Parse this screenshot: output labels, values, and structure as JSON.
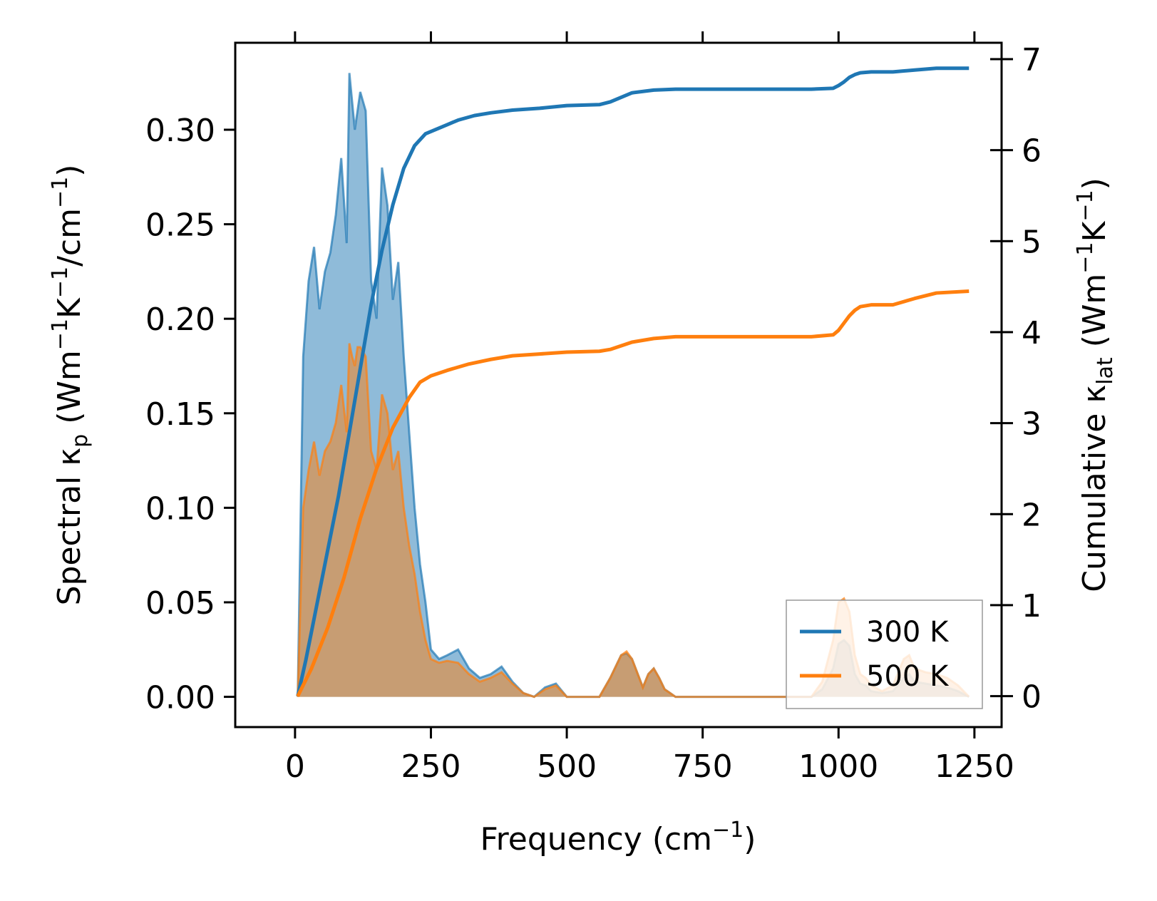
{
  "chart_data": {
    "type": "area+line",
    "xlabel": {
      "main": "Frequency (cm",
      "sup": "−1",
      "tail": ")"
    },
    "ylabel_left": {
      "main": "Spectral κ",
      "sub": "p",
      "mid": " (Wm",
      "sup1": "−1",
      "k": "K",
      "sup2": "−1",
      "tail": "/cm",
      "sup3": "−1",
      "end": ")"
    },
    "ylabel_right": {
      "main": "Cumulative κ",
      "sub": "lat",
      "mid": " (Wm",
      "sup1": "−1",
      "k": "K",
      "sup2": "−1",
      "end": ")"
    },
    "xlim": [
      -110,
      1300
    ],
    "ylim_left": [
      -0.016,
      0.346
    ],
    "ylim_right": [
      -0.34,
      7.18
    ],
    "xticks": [
      0,
      250,
      500,
      750,
      1000,
      1250
    ],
    "xtick_labels": [
      "0",
      "250",
      "500",
      "750",
      "1000",
      "1250"
    ],
    "yticks_left": [
      0.0,
      0.05,
      0.1,
      0.15,
      0.2,
      0.25,
      0.3
    ],
    "ytick_labels_left": [
      "0.00",
      "0.05",
      "0.10",
      "0.15",
      "0.20",
      "0.25",
      "0.30"
    ],
    "yticks_right": [
      0,
      1,
      2,
      3,
      4,
      5,
      6,
      7
    ],
    "ytick_labels_right": [
      "0",
      "1",
      "2",
      "3",
      "4",
      "5",
      "6",
      "7"
    ],
    "legend": {
      "position": "lower-right",
      "entries": [
        "300 K",
        "500 K"
      ]
    },
    "series": [
      {
        "name": "300 K",
        "color": "#1f77b4",
        "spectral": {
          "x": [
            5,
            15,
            25,
            35,
            45,
            55,
            65,
            75,
            85,
            95,
            100,
            105,
            110,
            115,
            120,
            130,
            140,
            150,
            160,
            170,
            180,
            190,
            200,
            210,
            220,
            230,
            240,
            250,
            265,
            280,
            300,
            320,
            340,
            360,
            380,
            400,
            420,
            440,
            460,
            480,
            500,
            540,
            560,
            580,
            600,
            610,
            620,
            640,
            650,
            660,
            670,
            680,
            690,
            700,
            720,
            750,
            800,
            900,
            950,
            970,
            990,
            1000,
            1010,
            1020,
            1030,
            1040,
            1050,
            1060,
            1080,
            1100,
            1120,
            1130,
            1140,
            1160,
            1180,
            1200,
            1220,
            1240
          ],
          "y": [
            0.0,
            0.18,
            0.22,
            0.238,
            0.205,
            0.225,
            0.235,
            0.255,
            0.285,
            0.24,
            0.33,
            0.315,
            0.3,
            0.31,
            0.32,
            0.31,
            0.22,
            0.2,
            0.28,
            0.26,
            0.21,
            0.23,
            0.18,
            0.14,
            0.1,
            0.07,
            0.05,
            0.025,
            0.02,
            0.022,
            0.025,
            0.015,
            0.01,
            0.012,
            0.016,
            0.008,
            0.002,
            0.0,
            0.005,
            0.007,
            0.0,
            0.0,
            0.0,
            0.01,
            0.022,
            0.023,
            0.02,
            0.005,
            0.012,
            0.015,
            0.01,
            0.004,
            0.002,
            0.0,
            0.0,
            0.0,
            0.0,
            0.0,
            0.0,
            0.004,
            0.015,
            0.028,
            0.03,
            0.027,
            0.012,
            0.007,
            0.006,
            0.003,
            0.002,
            0.003,
            0.01,
            0.012,
            0.008,
            0.007,
            0.006,
            0.005,
            0.003,
            0.0
          ]
        },
        "cumulative": {
          "x": [
            5,
            20,
            40,
            60,
            80,
            100,
            120,
            140,
            160,
            180,
            200,
            220,
            240,
            260,
            280,
            300,
            330,
            360,
            400,
            450,
            500,
            560,
            580,
            600,
            620,
            660,
            700,
            800,
            950,
            990,
            1000,
            1010,
            1020,
            1030,
            1040,
            1060,
            1080,
            1100,
            1140,
            1180,
            1240
          ],
          "y": [
            0,
            0.4,
            1.0,
            1.6,
            2.2,
            2.9,
            3.6,
            4.3,
            4.9,
            5.4,
            5.8,
            6.05,
            6.18,
            6.23,
            6.28,
            6.33,
            6.38,
            6.41,
            6.44,
            6.46,
            6.49,
            6.5,
            6.53,
            6.58,
            6.63,
            6.66,
            6.67,
            6.67,
            6.67,
            6.68,
            6.71,
            6.75,
            6.8,
            6.83,
            6.85,
            6.86,
            6.86,
            6.86,
            6.88,
            6.9,
            6.9
          ]
        }
      },
      {
        "name": "500 K",
        "color": "#ff7f0e",
        "spectral": {
          "x": [
            5,
            15,
            25,
            35,
            45,
            55,
            65,
            75,
            85,
            95,
            100,
            105,
            110,
            115,
            120,
            130,
            140,
            150,
            160,
            170,
            180,
            190,
            200,
            210,
            220,
            230,
            240,
            250,
            265,
            280,
            300,
            320,
            340,
            360,
            380,
            400,
            420,
            440,
            460,
            480,
            500,
            540,
            560,
            580,
            600,
            610,
            620,
            640,
            650,
            660,
            670,
            680,
            690,
            700,
            720,
            750,
            800,
            900,
            950,
            970,
            990,
            1000,
            1010,
            1020,
            1030,
            1040,
            1050,
            1060,
            1080,
            1100,
            1120,
            1130,
            1140,
            1160,
            1180,
            1200,
            1220,
            1240
          ],
          "y": [
            0.0,
            0.1,
            0.12,
            0.135,
            0.117,
            0.13,
            0.135,
            0.145,
            0.165,
            0.14,
            0.187,
            0.18,
            0.175,
            0.185,
            0.185,
            0.18,
            0.13,
            0.12,
            0.16,
            0.15,
            0.12,
            0.13,
            0.1,
            0.08,
            0.065,
            0.045,
            0.03,
            0.02,
            0.018,
            0.019,
            0.018,
            0.012,
            0.008,
            0.01,
            0.013,
            0.007,
            0.002,
            0.0,
            0.004,
            0.006,
            0.0,
            0.0,
            0.0,
            0.01,
            0.022,
            0.024,
            0.02,
            0.005,
            0.012,
            0.015,
            0.01,
            0.004,
            0.002,
            0.0,
            0.0,
            0.0,
            0.0,
            0.0,
            0.0,
            0.008,
            0.03,
            0.05,
            0.052,
            0.045,
            0.022,
            0.012,
            0.01,
            0.006,
            0.003,
            0.006,
            0.02,
            0.022,
            0.015,
            0.013,
            0.012,
            0.01,
            0.006,
            0.0
          ]
        },
        "cumulative": {
          "x": [
            5,
            30,
            60,
            90,
            120,
            150,
            180,
            210,
            230,
            250,
            280,
            320,
            360,
            400,
            450,
            500,
            560,
            580,
            600,
            620,
            660,
            700,
            800,
            950,
            990,
            1000,
            1010,
            1020,
            1030,
            1040,
            1060,
            1080,
            1100,
            1140,
            1180,
            1240
          ],
          "y": [
            0,
            0.3,
            0.75,
            1.3,
            1.95,
            2.5,
            2.95,
            3.28,
            3.45,
            3.52,
            3.58,
            3.65,
            3.7,
            3.74,
            3.76,
            3.78,
            3.79,
            3.81,
            3.85,
            3.89,
            3.93,
            3.95,
            3.95,
            3.95,
            3.97,
            4.02,
            4.1,
            4.18,
            4.24,
            4.28,
            4.3,
            4.3,
            4.3,
            4.37,
            4.43,
            4.45
          ]
        }
      }
    ]
  }
}
